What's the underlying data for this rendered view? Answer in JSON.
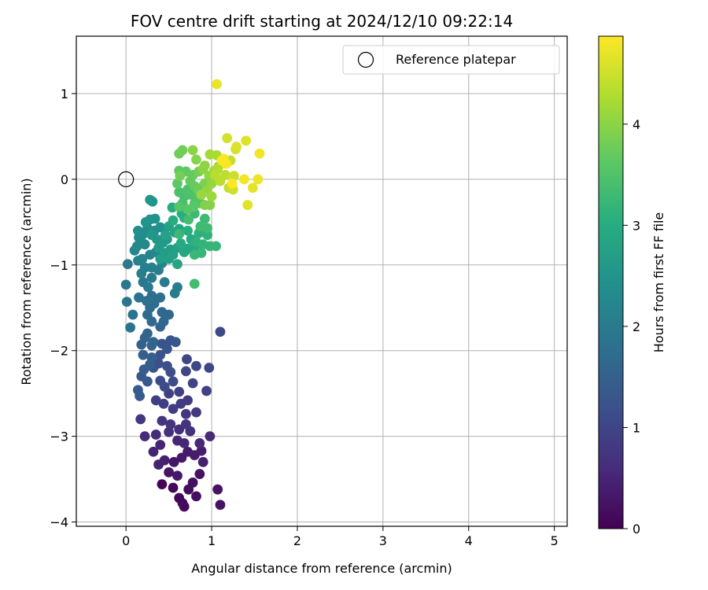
{
  "chart_data": {
    "type": "scatter",
    "title": "FOV centre drift starting at 2024/12/10 09:22:14",
    "xlabel": "Angular distance from reference (arcmin)",
    "ylabel": "Rotation from reference (arcmin)",
    "xlim": [
      -0.58,
      5.15
    ],
    "ylim": [
      -4.05,
      1.67
    ],
    "xticks": [
      0,
      1,
      2,
      3,
      4,
      5
    ],
    "yticks": [
      -4,
      -3,
      -2,
      -1,
      0,
      1
    ],
    "grid": true,
    "colormap": "viridis",
    "colorbar": {
      "label": "Hours from first FF file",
      "min": 0,
      "max": 4.87,
      "ticks": [
        0,
        1,
        2,
        3,
        4
      ]
    },
    "legend": {
      "position": "top-right",
      "entries": [
        "Reference platepar"
      ]
    },
    "reference_point": {
      "x": 0,
      "y": 0,
      "marker": "open-circle"
    },
    "points": [
      [
        0.42,
        -3.56,
        0.05
      ],
      [
        0.55,
        -3.6,
        0.08
      ],
      [
        0.62,
        -3.72,
        0.1
      ],
      [
        0.68,
        -3.82,
        0.12
      ],
      [
        0.66,
        -3.78,
        0.14
      ],
      [
        0.73,
        -3.62,
        0.16
      ],
      [
        0.82,
        -3.7,
        0.18
      ],
      [
        0.78,
        -3.54,
        0.2
      ],
      [
        0.86,
        -3.44,
        0.22
      ],
      [
        1.1,
        -3.8,
        0.24
      ],
      [
        1.07,
        -3.62,
        0.26
      ],
      [
        0.5,
        -3.42,
        0.28
      ],
      [
        0.56,
        -3.3,
        0.3
      ],
      [
        0.6,
        -3.46,
        0.32
      ],
      [
        0.65,
        -3.25,
        0.34
      ],
      [
        0.72,
        -3.18,
        0.36
      ],
      [
        0.8,
        -3.22,
        0.38
      ],
      [
        0.88,
        -3.17,
        0.4
      ],
      [
        0.9,
        -3.3,
        0.42
      ],
      [
        0.45,
        -3.28,
        0.44
      ],
      [
        0.38,
        -3.33,
        0.46
      ],
      [
        0.32,
        -3.18,
        0.48
      ],
      [
        0.4,
        -3.1,
        0.5
      ],
      [
        0.6,
        -3.05,
        0.52
      ],
      [
        0.68,
        -3.08,
        0.54
      ],
      [
        0.86,
        -3.08,
        0.56
      ],
      [
        0.98,
        -3.0,
        0.58
      ],
      [
        0.22,
        -3.0,
        0.6
      ],
      [
        0.35,
        -2.98,
        0.62
      ],
      [
        0.5,
        -2.95,
        0.64
      ],
      [
        0.62,
        -2.92,
        0.66
      ],
      [
        0.75,
        -2.94,
        0.68
      ],
      [
        0.7,
        -2.86,
        0.7
      ],
      [
        0.52,
        -2.86,
        0.72
      ],
      [
        0.42,
        -2.82,
        0.74
      ],
      [
        0.17,
        -2.8,
        0.76
      ],
      [
        0.7,
        -2.74,
        0.78
      ],
      [
        0.82,
        -2.72,
        0.8
      ],
      [
        0.72,
        -2.58,
        0.82
      ],
      [
        0.64,
        -2.62,
        0.84
      ],
      [
        0.55,
        -2.68,
        0.86
      ],
      [
        0.44,
        -2.62,
        0.88
      ],
      [
        0.35,
        -2.58,
        0.9
      ],
      [
        0.5,
        -2.5,
        0.92
      ],
      [
        0.62,
        -2.48,
        0.94
      ],
      [
        0.94,
        -2.47,
        0.96
      ],
      [
        0.78,
        -2.38,
        0.98
      ],
      [
        0.7,
        -2.24,
        1.0
      ],
      [
        0.71,
        -2.1,
        1.02
      ],
      [
        0.82,
        -2.18,
        1.04
      ],
      [
        0.97,
        -2.2,
        1.06
      ],
      [
        1.1,
        -1.78,
        1.08
      ],
      [
        0.55,
        -2.36,
        1.1
      ],
      [
        0.45,
        -2.42,
        1.12
      ],
      [
        0.4,
        -2.35,
        1.14
      ],
      [
        0.52,
        -2.25,
        1.16
      ],
      [
        0.48,
        -2.18,
        1.18
      ],
      [
        0.38,
        -2.15,
        1.2
      ],
      [
        0.32,
        -2.2,
        1.22
      ],
      [
        0.4,
        -2.05,
        1.24
      ],
      [
        0.42,
        -1.92,
        1.26
      ],
      [
        0.48,
        -1.98,
        1.28
      ],
      [
        0.52,
        -1.88,
        1.3
      ],
      [
        0.58,
        -1.9,
        1.32
      ],
      [
        0.25,
        -2.36,
        1.34
      ],
      [
        0.18,
        -2.3,
        1.36
      ],
      [
        0.14,
        -2.46,
        1.38
      ],
      [
        0.16,
        -2.53,
        1.4
      ],
      [
        0.21,
        -2.22,
        1.42
      ],
      [
        0.28,
        -2.16,
        1.44
      ],
      [
        0.3,
        -2.08,
        1.46
      ],
      [
        0.2,
        -2.05,
        1.48
      ],
      [
        0.18,
        -1.93,
        1.5
      ],
      [
        0.22,
        -1.85,
        1.52
      ],
      [
        0.3,
        -1.94,
        1.54
      ],
      [
        0.25,
        -1.8,
        1.56
      ],
      [
        0.32,
        -1.9,
        1.58
      ],
      [
        0.4,
        -1.72,
        1.6
      ],
      [
        0.44,
        -1.66,
        1.62
      ],
      [
        0.5,
        -1.58,
        1.64
      ],
      [
        0.42,
        -1.55,
        1.66
      ],
      [
        0.3,
        -1.66,
        1.68
      ],
      [
        0.25,
        -1.58,
        1.7
      ],
      [
        0.28,
        -1.5,
        1.72
      ],
      [
        0.33,
        -1.45,
        1.74
      ],
      [
        0.4,
        -1.38,
        1.76
      ],
      [
        0.3,
        -1.36,
        1.78
      ],
      [
        0.24,
        -1.42,
        1.8
      ],
      [
        0.15,
        -1.38,
        1.82
      ],
      [
        0.08,
        -1.58,
        1.84
      ],
      [
        0.05,
        -1.73,
        1.86
      ],
      [
        0.01,
        -1.43,
        1.88
      ],
      [
        0.0,
        -1.23,
        1.9
      ],
      [
        0.02,
        -0.99,
        1.92
      ],
      [
        0.2,
        -1.2,
        1.94
      ],
      [
        0.26,
        -1.26,
        1.96
      ],
      [
        0.3,
        -1.15,
        1.98
      ],
      [
        0.45,
        -1.2,
        2.0
      ],
      [
        0.57,
        -1.33,
        2.02
      ],
      [
        0.6,
        -1.26,
        2.04
      ],
      [
        0.38,
        -1.06,
        2.06
      ],
      [
        0.18,
        -1.1,
        2.08
      ],
      [
        0.22,
        -1.03,
        2.1
      ],
      [
        0.3,
        -1.03,
        2.12
      ],
      [
        0.42,
        -0.98,
        2.14
      ],
      [
        0.14,
        -0.95,
        2.16
      ],
      [
        0.19,
        -0.93,
        2.18
      ],
      [
        0.28,
        -0.88,
        2.2
      ],
      [
        0.35,
        -0.85,
        2.22
      ],
      [
        0.1,
        -0.83,
        2.24
      ],
      [
        0.13,
        -0.78,
        2.26
      ],
      [
        0.18,
        -0.73,
        2.28
      ],
      [
        0.22,
        -0.76,
        2.3
      ],
      [
        0.15,
        -0.68,
        2.32
      ],
      [
        0.2,
        -0.64,
        2.34
      ],
      [
        0.14,
        -0.6,
        2.36
      ],
      [
        0.25,
        -0.57,
        2.38
      ],
      [
        0.33,
        -0.6,
        2.4
      ],
      [
        0.4,
        -0.56,
        2.42
      ],
      [
        0.45,
        -0.58,
        2.44
      ],
      [
        0.28,
        -0.47,
        2.46
      ],
      [
        0.34,
        -0.46,
        2.48
      ],
      [
        0.23,
        -0.5,
        2.5
      ],
      [
        0.28,
        -0.24,
        2.52
      ],
      [
        0.31,
        -0.26,
        2.54
      ],
      [
        0.3,
        -0.65,
        2.56
      ],
      [
        0.36,
        -0.7,
        2.58
      ],
      [
        0.43,
        -0.74,
        2.6
      ],
      [
        0.48,
        -0.7,
        2.62
      ],
      [
        0.38,
        -0.8,
        2.64
      ],
      [
        0.45,
        -0.86,
        2.66
      ],
      [
        0.52,
        -0.82,
        2.68
      ],
      [
        0.4,
        -0.93,
        2.7
      ],
      [
        0.5,
        -0.93,
        2.72
      ],
      [
        0.55,
        -0.88,
        2.74
      ],
      [
        0.6,
        -0.8,
        2.76
      ],
      [
        0.46,
        -0.65,
        2.78
      ],
      [
        0.5,
        -0.55,
        2.8
      ],
      [
        0.57,
        -0.62,
        2.82
      ],
      [
        0.62,
        -0.58,
        2.84
      ],
      [
        0.6,
        -0.99,
        2.86
      ],
      [
        0.68,
        -0.85,
        2.88
      ],
      [
        0.72,
        -0.81,
        2.9
      ],
      [
        0.8,
        -0.8,
        2.92
      ],
      [
        0.76,
        -0.7,
        2.94
      ],
      [
        0.64,
        -0.75,
        2.96
      ],
      [
        0.55,
        -0.48,
        2.98
      ],
      [
        0.54,
        -0.33,
        3.0
      ],
      [
        0.65,
        -0.4,
        3.02
      ],
      [
        0.68,
        -0.45,
        3.04
      ],
      [
        0.72,
        -0.6,
        3.06
      ],
      [
        0.85,
        -0.63,
        3.08
      ],
      [
        0.88,
        -0.6,
        3.1
      ],
      [
        0.95,
        -0.65,
        3.12
      ],
      [
        0.82,
        -0.73,
        3.14
      ],
      [
        0.9,
        -0.76,
        3.16
      ],
      [
        0.98,
        -0.78,
        3.18
      ],
      [
        1.05,
        -0.78,
        3.2
      ],
      [
        0.88,
        -0.86,
        3.22
      ],
      [
        0.8,
        -0.88,
        3.24
      ],
      [
        0.62,
        -0.64,
        3.26
      ],
      [
        0.8,
        -0.4,
        3.28
      ],
      [
        0.92,
        -0.46,
        3.3
      ],
      [
        0.87,
        -0.55,
        3.32
      ],
      [
        0.95,
        -0.57,
        3.34
      ],
      [
        0.8,
        -1.22,
        3.36
      ],
      [
        0.73,
        -0.47,
        3.38
      ],
      [
        0.66,
        -0.28,
        3.4
      ],
      [
        0.68,
        -0.2,
        3.42
      ],
      [
        0.62,
        -0.15,
        3.44
      ],
      [
        0.72,
        -0.12,
        3.46
      ],
      [
        0.75,
        -0.18,
        3.48
      ],
      [
        0.82,
        -0.22,
        3.5
      ],
      [
        0.87,
        -0.28,
        3.52
      ],
      [
        0.8,
        -0.28,
        3.54
      ],
      [
        0.62,
        -0.32,
        3.56
      ],
      [
        0.72,
        -0.35,
        3.58
      ],
      [
        0.79,
        -0.32,
        3.6
      ],
      [
        0.6,
        -0.05,
        3.62
      ],
      [
        0.62,
        0.1,
        3.64
      ],
      [
        0.7,
        0.09,
        3.66
      ],
      [
        0.78,
        0.05,
        3.68
      ],
      [
        0.75,
        -0.02,
        3.7
      ],
      [
        0.8,
        -0.08,
        3.72
      ],
      [
        0.85,
        -0.12,
        3.74
      ],
      [
        0.9,
        -0.08,
        3.76
      ],
      [
        0.62,
        0.3,
        3.78
      ],
      [
        0.66,
        0.34,
        3.8
      ],
      [
        0.63,
        0.04,
        3.82
      ],
      [
        0.85,
        0.09,
        3.84
      ],
      [
        0.9,
        0.12,
        3.86
      ],
      [
        0.92,
        -0.05,
        3.88
      ],
      [
        0.95,
        -0.1,
        3.9
      ],
      [
        0.92,
        -0.3,
        3.92
      ],
      [
        0.98,
        -0.3,
        3.94
      ],
      [
        0.82,
        0.23,
        3.96
      ],
      [
        0.78,
        0.34,
        3.98
      ],
      [
        0.9,
        0.12,
        4.0
      ],
      [
        0.92,
        0.16,
        4.02
      ],
      [
        0.97,
        0.04,
        4.04
      ],
      [
        1.0,
        -0.05,
        4.06
      ],
      [
        0.94,
        -0.14,
        4.08
      ],
      [
        0.88,
        -0.18,
        4.1
      ],
      [
        1.0,
        -0.2,
        4.12
      ],
      [
        1.03,
        0.1,
        4.15
      ],
      [
        1.08,
        0.15,
        4.18
      ],
      [
        0.98,
        0.29,
        4.21
      ],
      [
        1.06,
        0.28,
        4.24
      ],
      [
        1.12,
        0.23,
        4.27
      ],
      [
        1.07,
        0.12,
        4.3
      ],
      [
        1.04,
        0.05,
        4.33
      ],
      [
        1.1,
        -0.02,
        4.36
      ],
      [
        1.16,
        0.05,
        4.39
      ],
      [
        1.22,
        0.22,
        4.42
      ],
      [
        1.2,
        -0.1,
        4.45
      ],
      [
        1.26,
        0.04,
        4.48
      ],
      [
        1.25,
        -0.12,
        4.51
      ],
      [
        1.18,
        0.48,
        4.54
      ],
      [
        1.28,
        0.35,
        4.57
      ],
      [
        1.29,
        0.38,
        4.6
      ],
      [
        1.4,
        0.45,
        4.63
      ],
      [
        1.42,
        -0.3,
        4.66
      ],
      [
        1.48,
        -0.1,
        4.69
      ],
      [
        1.06,
        1.11,
        4.72
      ],
      [
        1.54,
        0.0,
        4.75
      ],
      [
        1.56,
        0.3,
        4.78
      ],
      [
        1.38,
        0.0,
        4.8
      ],
      [
        1.14,
        0.24,
        4.82
      ],
      [
        1.17,
        0.18,
        4.84
      ],
      [
        1.12,
        0.22,
        4.86
      ],
      [
        1.24,
        -0.05,
        4.87
      ]
    ]
  }
}
